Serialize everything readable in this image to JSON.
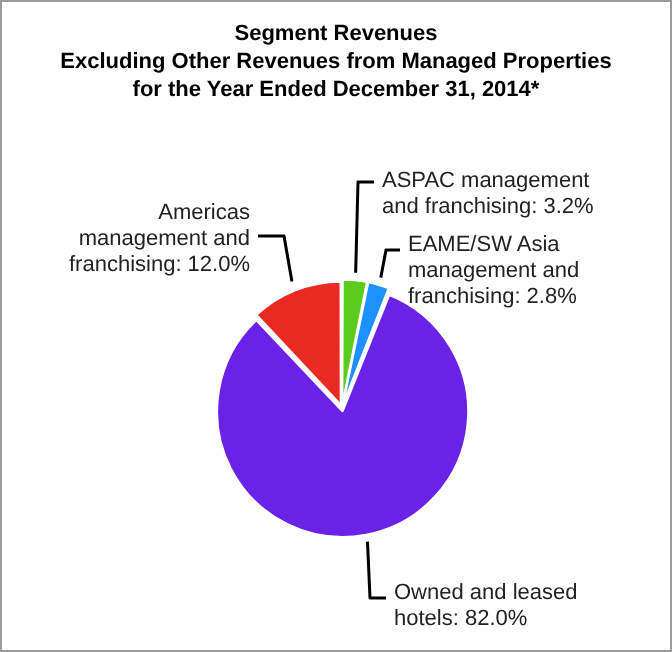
{
  "chart_data": {
    "type": "pie",
    "title": "Segment Revenues\nExcluding Other Revenues from Managed Properties\nfor the Year Ended December 31, 2014*",
    "categories": [
      "ASPAC management and franchising",
      "EAME/SW Asia management and franchising",
      "Owned and leased hotels",
      "Americas management and franchising"
    ],
    "values": [
      3.2,
      2.8,
      82.0,
      12.0
    ],
    "value_labels": [
      "3.2%",
      "2.8%",
      "82.0%",
      "12.0%"
    ],
    "colors": [
      "#5ccc1c",
      "#1e90ff",
      "#6a22e6",
      "#e82a22"
    ],
    "legend": false
  }
}
